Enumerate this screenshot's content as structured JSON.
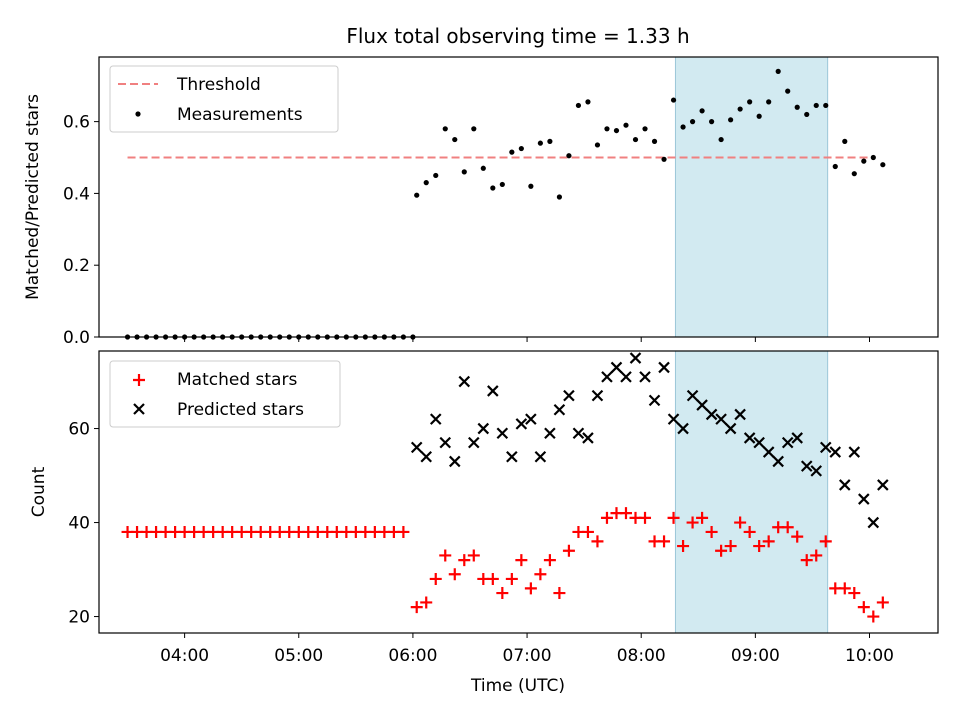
{
  "title": "Flux total observing time = 1.33 h",
  "xlabel": "Time (UTC)",
  "x_ticks": [
    "04:00",
    "05:00",
    "06:00",
    "07:00",
    "08:00",
    "09:00",
    "10:00"
  ],
  "shaded_interval": {
    "start": "08:18",
    "end": "09:38",
    "color": "#add8e6"
  },
  "chart_data": [
    {
      "type": "scatter",
      "ylabel": "Matched/Predicted stars",
      "ylim": [
        0,
        0.78
      ],
      "y_ticks": [
        "0.0",
        "0.2",
        "0.4",
        "0.6"
      ],
      "legend_position": "top-left",
      "threshold": {
        "name": "Threshold",
        "value": 0.5,
        "x_start": "03:30",
        "x_end": "10:00",
        "color": "#f08080",
        "style": "dashed"
      },
      "series": [
        {
          "name": "Measurements",
          "marker": "dot",
          "color": "#000000",
          "x": [
            "03:30",
            "03:35",
            "03:40",
            "03:45",
            "03:50",
            "03:55",
            "04:00",
            "04:05",
            "04:10",
            "04:15",
            "04:20",
            "04:25",
            "04:30",
            "04:35",
            "04:40",
            "04:45",
            "04:50",
            "04:55",
            "05:00",
            "05:05",
            "05:10",
            "05:15",
            "05:20",
            "05:25",
            "05:30",
            "05:35",
            "05:40",
            "05:45",
            "05:50",
            "05:55",
            "06:00",
            "06:02",
            "06:07",
            "06:12",
            "06:17",
            "06:22",
            "06:27",
            "06:32",
            "06:37",
            "06:42",
            "06:47",
            "06:52",
            "06:57",
            "07:02",
            "07:07",
            "07:12",
            "07:17",
            "07:22",
            "07:27",
            "07:32",
            "07:37",
            "07:42",
            "07:47",
            "07:52",
            "07:57",
            "08:02",
            "08:07",
            "08:12",
            "08:17",
            "08:22",
            "08:27",
            "08:32",
            "08:37",
            "08:42",
            "08:47",
            "08:52",
            "08:57",
            "09:02",
            "09:07",
            "09:12",
            "09:17",
            "09:22",
            "09:27",
            "09:32",
            "09:37",
            "09:42",
            "09:47",
            "09:52",
            "09:57",
            "10:02",
            "10:07"
          ],
          "y": [
            0,
            0,
            0,
            0,
            0,
            0,
            0,
            0,
            0,
            0,
            0,
            0,
            0,
            0,
            0,
            0,
            0,
            0,
            0,
            0,
            0,
            0,
            0,
            0,
            0,
            0,
            0,
            0,
            0,
            0,
            0,
            0.395,
            0.43,
            0.45,
            0.58,
            0.55,
            0.46,
            0.58,
            0.47,
            0.415,
            0.425,
            0.515,
            0.525,
            0.42,
            0.54,
            0.545,
            0.39,
            0.505,
            0.645,
            0.655,
            0.535,
            0.58,
            0.575,
            0.59,
            0.55,
            0.58,
            0.545,
            0.495,
            0.66,
            0.585,
            0.6,
            0.63,
            0.6,
            0.55,
            0.605,
            0.635,
            0.655,
            0.615,
            0.655,
            0.74,
            0.685,
            0.64,
            0.62,
            0.645,
            0.645,
            0.475,
            0.545,
            0.455,
            0.49,
            0.5,
            0.48
          ]
        }
      ]
    },
    {
      "type": "scatter",
      "ylabel": "Count",
      "ylim": [
        16.5,
        76.5
      ],
      "y_ticks": [
        "20",
        "40",
        "60"
      ],
      "legend_position": "top-left",
      "series": [
        {
          "name": "Matched stars",
          "marker": "plus",
          "color": "#ff0000",
          "x": [
            "03:30",
            "03:35",
            "03:40",
            "03:45",
            "03:50",
            "03:55",
            "04:00",
            "04:05",
            "04:10",
            "04:15",
            "04:20",
            "04:25",
            "04:30",
            "04:35",
            "04:40",
            "04:45",
            "04:50",
            "04:55",
            "05:00",
            "05:05",
            "05:10",
            "05:15",
            "05:20",
            "05:25",
            "05:30",
            "05:35",
            "05:40",
            "05:45",
            "05:50",
            "05:55",
            "06:02",
            "06:07",
            "06:12",
            "06:17",
            "06:22",
            "06:27",
            "06:32",
            "06:37",
            "06:42",
            "06:47",
            "06:52",
            "06:57",
            "07:02",
            "07:07",
            "07:12",
            "07:17",
            "07:22",
            "07:27",
            "07:32",
            "07:37",
            "07:42",
            "07:47",
            "07:52",
            "07:57",
            "08:02",
            "08:07",
            "08:12",
            "08:17",
            "08:22",
            "08:27",
            "08:32",
            "08:37",
            "08:42",
            "08:47",
            "08:52",
            "08:57",
            "09:02",
            "09:07",
            "09:12",
            "09:17",
            "09:22",
            "09:27",
            "09:32",
            "09:37",
            "09:42",
            "09:47",
            "09:52",
            "09:57",
            "10:02",
            "10:07"
          ],
          "y": [
            38,
            38,
            38,
            38,
            38,
            38,
            38,
            38,
            38,
            38,
            38,
            38,
            38,
            38,
            38,
            38,
            38,
            38,
            38,
            38,
            38,
            38,
            38,
            38,
            38,
            38,
            38,
            38,
            38,
            38,
            22,
            23,
            28,
            33,
            29,
            32,
            33,
            28,
            28,
            25,
            28,
            32,
            26,
            29,
            32,
            25,
            34,
            38,
            38,
            36,
            41,
            42,
            42,
            41,
            41,
            36,
            36,
            41,
            35,
            40,
            41,
            38,
            34,
            35,
            40,
            38,
            35,
            36,
            39,
            39,
            37,
            32,
            33,
            36,
            26,
            26,
            25,
            22,
            20,
            23
          ]
        },
        {
          "name": "Predicted stars",
          "marker": "x",
          "color": "#000000",
          "x": [
            "06:02",
            "06:07",
            "06:12",
            "06:17",
            "06:22",
            "06:27",
            "06:32",
            "06:37",
            "06:42",
            "06:47",
            "06:52",
            "06:57",
            "07:02",
            "07:07",
            "07:12",
            "07:17",
            "07:22",
            "07:27",
            "07:32",
            "07:37",
            "07:42",
            "07:47",
            "07:52",
            "07:57",
            "08:02",
            "08:07",
            "08:12",
            "08:17",
            "08:22",
            "08:27",
            "08:32",
            "08:37",
            "08:42",
            "08:47",
            "08:52",
            "08:57",
            "09:02",
            "09:07",
            "09:12",
            "09:17",
            "09:22",
            "09:27",
            "09:32",
            "09:37",
            "09:42",
            "09:47",
            "09:52",
            "09:57",
            "10:02",
            "10:07"
          ],
          "y": [
            56,
            54,
            62,
            57,
            53,
            70,
            57,
            60,
            68,
            59,
            54,
            61,
            62,
            54,
            59,
            64,
            67,
            59,
            58,
            67,
            71,
            73,
            71,
            75,
            71,
            66,
            73,
            62,
            60,
            67,
            65,
            63,
            62,
            60,
            63,
            58,
            57,
            55,
            53,
            57,
            58,
            52,
            51,
            56,
            55,
            48,
            55,
            45,
            40,
            48
          ]
        }
      ]
    }
  ]
}
